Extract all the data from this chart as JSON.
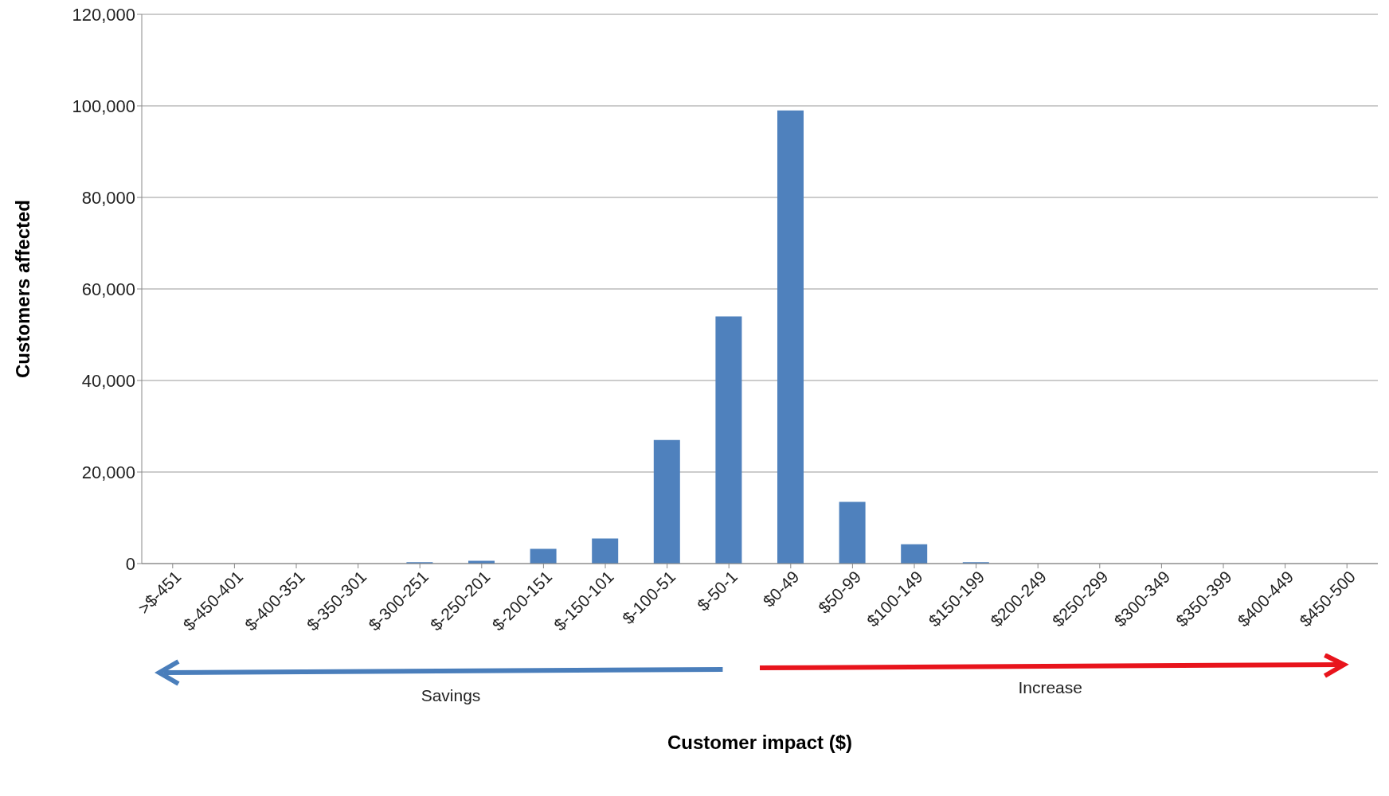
{
  "chart_data": {
    "type": "bar",
    "ylabel": "Customers affected",
    "categories": [
      ">$-451",
      "$-450-401",
      "$-400-351",
      "$-350-301",
      "$-300-251",
      "$-250-201",
      "$-200-151",
      "$-150-101",
      "$-100-51",
      "$-50-1",
      "$0-49",
      "$50-99",
      "$100-149",
      "$150-199",
      "$200-249",
      "$250-299",
      "$300-349",
      "$350-399",
      "$400-449",
      "$450-500"
    ],
    "values": [
      0,
      0,
      0,
      0,
      300,
      600,
      3200,
      5500,
      27000,
      54000,
      99000,
      13500,
      4200,
      300,
      0,
      0,
      0,
      0,
      0,
      0
    ],
    "color": "#4f81bd",
    "ylim": [
      0,
      120000
    ],
    "yticks": [
      0,
      {
        "value": 20000,
        "label": "20,000"
      },
      {
        "value": 40000,
        "label": "40,000"
      },
      {
        "value": 60000,
        "label": "60,000"
      },
      {
        "value": 80000,
        "label": "80,000"
      },
      {
        "value": 100000,
        "label": "100,000"
      },
      {
        "value": 120000,
        "label": "120,000"
      }
    ],
    "grid": "y",
    "annotations": [
      "Savings",
      "Increase",
      "Customer impact ($)"
    ]
  }
}
